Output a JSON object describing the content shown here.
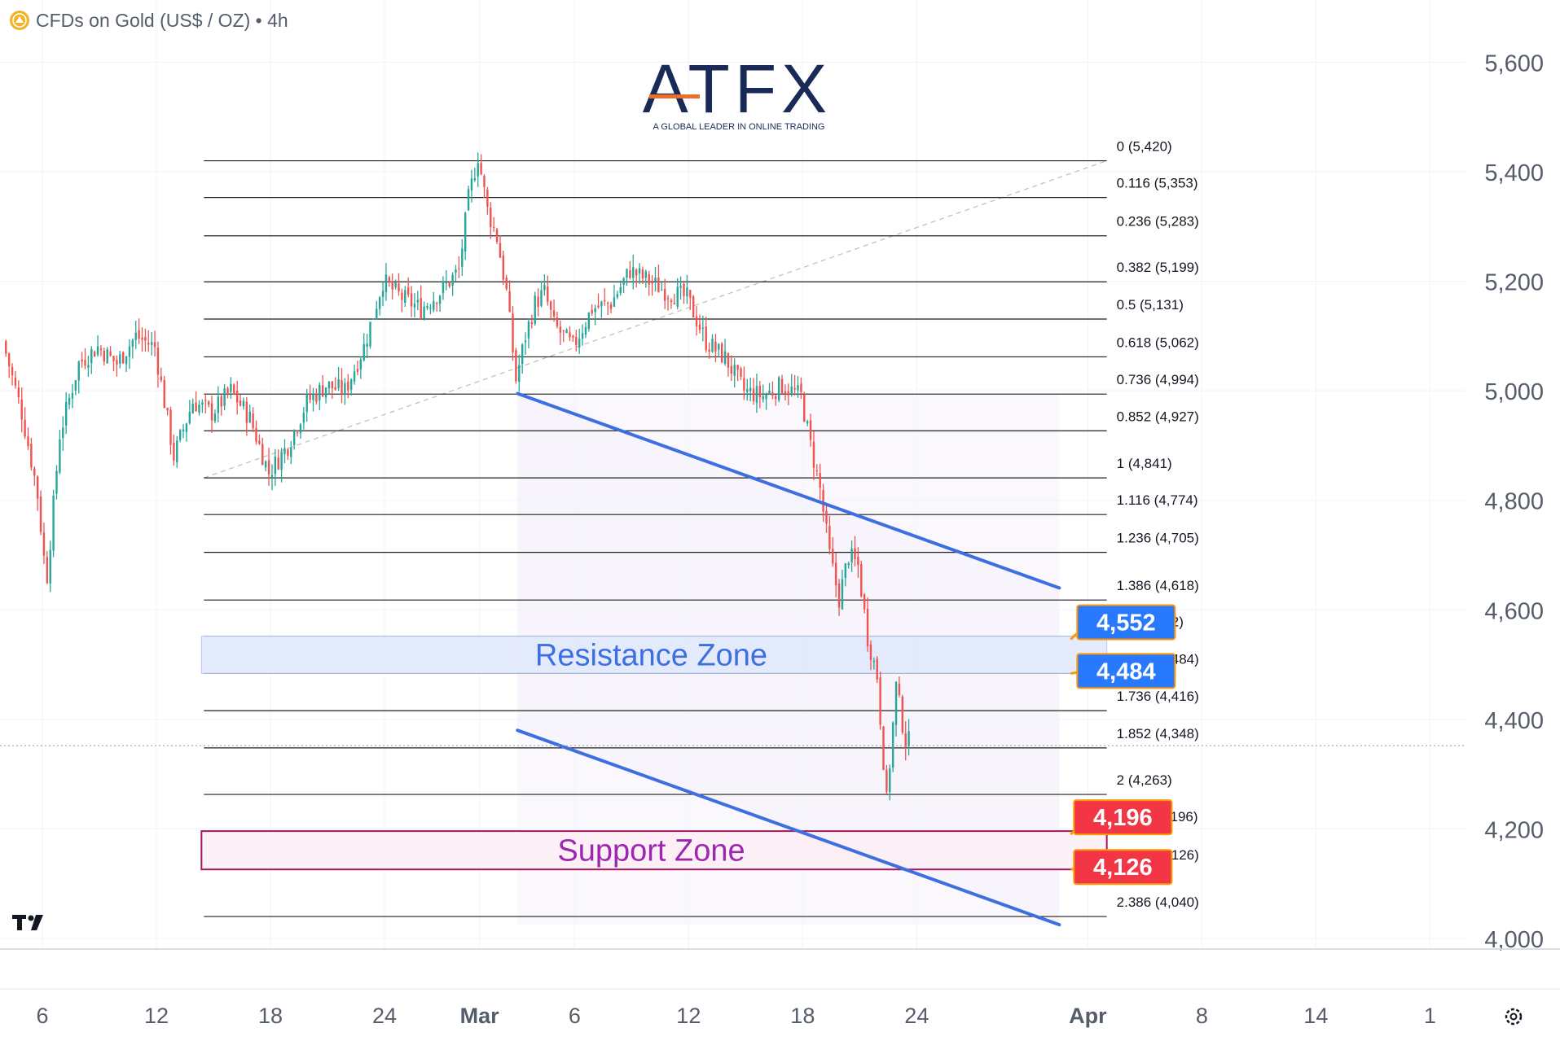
{
  "header": {
    "symbol_icon": "gold-coin-icon",
    "title": "CFDs on Gold (US$ / OZ) • 4h"
  },
  "logo": {
    "brand": "ATFX",
    "tagline": "A GLOBAL LEADER IN ONLINE TRADING"
  },
  "footer": {
    "tradingview_icon": "tradingview-logo-icon",
    "settings_icon": "settings-icon"
  },
  "colors": {
    "up": "#26a69a",
    "down": "#ef5350",
    "channel": "#3d6fe0",
    "resistance": "#3d6fe0",
    "support": "#9c27b0",
    "fib_line": "#1f1f1f",
    "badge_blue": "#2979ff",
    "badge_red": "#f23645",
    "badge_border": "#ff9800"
  },
  "chart_data": {
    "type": "candlestick",
    "title": "CFDs on Gold (US$ / OZ) • 4h",
    "y_ticks": [
      "4,000",
      "4,200",
      "4,400",
      "4,600",
      "4,800",
      "5,000",
      "5,200",
      "5,400",
      "5,600"
    ],
    "ylim": [
      3990,
      5620
    ],
    "x_ticks": [
      {
        "label": "6",
        "day": 6
      },
      {
        "label": "12",
        "day": 12
      },
      {
        "label": "18",
        "day": 18
      },
      {
        "label": "24",
        "day": 24
      },
      {
        "label": "Mar",
        "day": 29
      },
      {
        "label": "6",
        "day": 34
      },
      {
        "label": "12",
        "day": 40
      },
      {
        "label": "18",
        "day": 46
      },
      {
        "label": "24",
        "day": 52
      },
      {
        "label": "Apr",
        "day": 61
      },
      {
        "label": "8",
        "day": 67
      },
      {
        "label": "14",
        "day": 73
      },
      {
        "label": "1",
        "day": 79
      }
    ],
    "xlim": [
      4,
      80
    ],
    "current_price": 4352,
    "price_path": [
      [
        4,
        5090
      ],
      [
        5,
        4960
      ],
      [
        5.8,
        4820
      ],
      [
        6.3,
        4650
      ],
      [
        7,
        4920
      ],
      [
        8,
        5050
      ],
      [
        9,
        5080
      ],
      [
        10,
        5050
      ],
      [
        11,
        5100
      ],
      [
        12,
        5080
      ],
      [
        13,
        4880
      ],
      [
        14,
        4980
      ],
      [
        15,
        4960
      ],
      [
        16,
        5000
      ],
      [
        17,
        4950
      ],
      [
        18,
        4850
      ],
      [
        19,
        4900
      ],
      [
        20,
        4980
      ],
      [
        21,
        5010
      ],
      [
        22,
        5000
      ],
      [
        23,
        5080
      ],
      [
        24,
        5200
      ],
      [
        25,
        5170
      ],
      [
        26,
        5150
      ],
      [
        27,
        5180
      ],
      [
        28,
        5220
      ],
      [
        28.5,
        5350
      ],
      [
        29,
        5430
      ],
      [
        29.5,
        5330
      ],
      [
        30,
        5280
      ],
      [
        30.5,
        5180
      ],
      [
        31,
        5020
      ],
      [
        31.5,
        5100
      ],
      [
        32,
        5160
      ],
      [
        32.5,
        5180
      ],
      [
        33,
        5120
      ],
      [
        34,
        5080
      ],
      [
        35,
        5150
      ],
      [
        36,
        5160
      ],
      [
        37,
        5220
      ],
      [
        38,
        5200
      ],
      [
        39,
        5180
      ],
      [
        40,
        5170
      ],
      [
        41,
        5090
      ],
      [
        42,
        5060
      ],
      [
        43,
        5000
      ],
      [
        44,
        4990
      ],
      [
        45,
        5010
      ],
      [
        46,
        4990
      ],
      [
        46.5,
        4900
      ],
      [
        47,
        4820
      ],
      [
        47.5,
        4700
      ],
      [
        48,
        4620
      ],
      [
        48.5,
        4700
      ],
      [
        49,
        4680
      ],
      [
        49.5,
        4550
      ],
      [
        50,
        4480
      ],
      [
        50.5,
        4250
      ],
      [
        51,
        4460
      ],
      [
        51.5,
        4360
      ]
    ],
    "fib_levels": [
      {
        "label": "0 (5,420)",
        "value": 5420
      },
      {
        "label": "0.116 (5,353)",
        "value": 5353
      },
      {
        "label": "0.236 (5,283)",
        "value": 5283
      },
      {
        "label": "0.382 (5,199)",
        "value": 5199
      },
      {
        "label": "0.5 (5,131)",
        "value": 5131
      },
      {
        "label": "0.618 (5,062)",
        "value": 5062
      },
      {
        "label": "0.736 (4,994)",
        "value": 4994
      },
      {
        "label": "0.852 (4,927)",
        "value": 4927
      },
      {
        "label": "1 (4,841)",
        "value": 4841
      },
      {
        "label": "1.116 (4,774)",
        "value": 4774
      },
      {
        "label": "1.236 (4,705)",
        "value": 4705
      },
      {
        "label": "1.386 (4,618)",
        "value": 4618
      },
      {
        "label": "1.5 (4,552)",
        "value": 4552
      },
      {
        "label": "1.618 (4,484)",
        "value": 4484
      },
      {
        "label": "1.736 (4,416)",
        "value": 4416
      },
      {
        "label": "1.852 (4,348)",
        "value": 4348
      },
      {
        "label": "2 (4,263)",
        "value": 4263
      },
      {
        "label": "2.116 (4,196)",
        "value": 4196
      },
      {
        "label": "2.236 (4,126)",
        "value": 4126
      },
      {
        "label": "2.386 (4,040)",
        "value": 4040
      }
    ],
    "fib_range_days": [
      14.5,
      62
    ],
    "fib_anchor": {
      "from": [
        14.5,
        4841
      ],
      "to": [
        62,
        5420
      ]
    },
    "channel": {
      "upper": {
        "from": [
          31,
          4995
        ],
        "to": [
          59.5,
          4640
        ]
      },
      "lower": {
        "from": [
          31,
          4380
        ],
        "to": [
          59.5,
          4025
        ]
      }
    },
    "zones": [
      {
        "name": "Resistance Zone",
        "top": 4552,
        "bottom": 4484,
        "color": "#3d6fe0"
      },
      {
        "name": "Support Zone",
        "top": 4196,
        "bottom": 4126,
        "color": "#9c27b0"
      }
    ],
    "badges": [
      {
        "text": "4,552",
        "value": 4552,
        "color": "#2979ff"
      },
      {
        "text": "4,484",
        "value": 4484,
        "color": "#2979ff"
      },
      {
        "text": "4,196",
        "value": 4196,
        "color": "#f23645"
      },
      {
        "text": "4,126",
        "value": 4126,
        "color": "#f23645"
      }
    ],
    "grid": true,
    "legend": "none"
  }
}
